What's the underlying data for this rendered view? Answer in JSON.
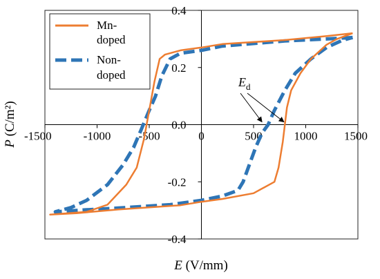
{
  "chart_data": {
    "type": "line",
    "xlabel": {
      "var": "E",
      "unit": " (V/mm)"
    },
    "ylabel": {
      "var": "P",
      "unit": " (C/m²)"
    },
    "xlim": [
      -1500,
      1500
    ],
    "ylim": [
      -0.4,
      0.4
    ],
    "x_ticks": [
      "-1500",
      "-1000",
      "-500",
      "0",
      "500",
      "1000",
      "1500"
    ],
    "y_ticks": [
      "0.4",
      "0.2",
      "0.0",
      "-0.2",
      "-0.4"
    ],
    "legend": {
      "placement": "top-left",
      "box": true
    },
    "annotation": {
      "text": "E",
      "subscript": "d"
    },
    "colors": {
      "mn": "#ED7D31",
      "non": "#2E75B6"
    },
    "series": [
      {
        "name": "Mn-doped",
        "style": "solid",
        "color": "#ED7D31",
        "points": [
          [
            1450,
            0.32
          ],
          [
            1200,
            0.31
          ],
          [
            800,
            0.296
          ],
          [
            200,
            0.282
          ],
          [
            0,
            0.27
          ],
          [
            -200,
            0.26
          ],
          [
            -350,
            0.245
          ],
          [
            -400,
            0.23
          ],
          [
            -450,
            0.15
          ],
          [
            -500,
            0.05
          ],
          [
            -550,
            -0.05
          ],
          [
            -620,
            -0.15
          ],
          [
            -720,
            -0.21
          ],
          [
            -900,
            -0.28
          ],
          [
            -1100,
            -0.305
          ],
          [
            -1450,
            -0.315
          ],
          [
            -1200,
            -0.31
          ],
          [
            -800,
            -0.297
          ],
          [
            -200,
            -0.282
          ],
          [
            0,
            -0.27
          ],
          [
            200,
            -0.26
          ],
          [
            500,
            -0.24
          ],
          [
            700,
            -0.2
          ],
          [
            740,
            -0.15
          ],
          [
            780,
            -0.06
          ],
          [
            800,
            0.0
          ],
          [
            820,
            0.06
          ],
          [
            860,
            0.12
          ],
          [
            950,
            0.18
          ],
          [
            1050,
            0.23
          ],
          [
            1200,
            0.28
          ],
          [
            1300,
            0.3
          ],
          [
            1450,
            0.32
          ]
        ]
      },
      {
        "name": "Non-doped",
        "style": "dashed",
        "color": "#2E75B6",
        "points": [
          [
            1450,
            0.305
          ],
          [
            1200,
            0.3
          ],
          [
            800,
            0.293
          ],
          [
            200,
            0.275
          ],
          [
            0,
            0.26
          ],
          [
            -200,
            0.25
          ],
          [
            -300,
            0.23
          ],
          [
            -380,
            0.17
          ],
          [
            -440,
            0.1
          ],
          [
            -500,
            0.05
          ],
          [
            -580,
            -0.02
          ],
          [
            -650,
            -0.08
          ],
          [
            -750,
            -0.14
          ],
          [
            -900,
            -0.21
          ],
          [
            -1100,
            -0.265
          ],
          [
            -1250,
            -0.29
          ],
          [
            -1400,
            -0.305
          ],
          [
            -1100,
            -0.298
          ],
          [
            -800,
            -0.292
          ],
          [
            -300,
            -0.28
          ],
          [
            0,
            -0.265
          ],
          [
            200,
            -0.25
          ],
          [
            350,
            -0.23
          ],
          [
            400,
            -0.2
          ],
          [
            450,
            -0.15
          ],
          [
            520,
            -0.08
          ],
          [
            580,
            -0.03
          ],
          [
            640,
            0.0
          ],
          [
            700,
            0.05
          ],
          [
            800,
            0.12
          ],
          [
            900,
            0.18
          ],
          [
            1050,
            0.23
          ],
          [
            1200,
            0.27
          ],
          [
            1350,
            0.295
          ],
          [
            1450,
            0.305
          ]
        ]
      }
    ]
  }
}
